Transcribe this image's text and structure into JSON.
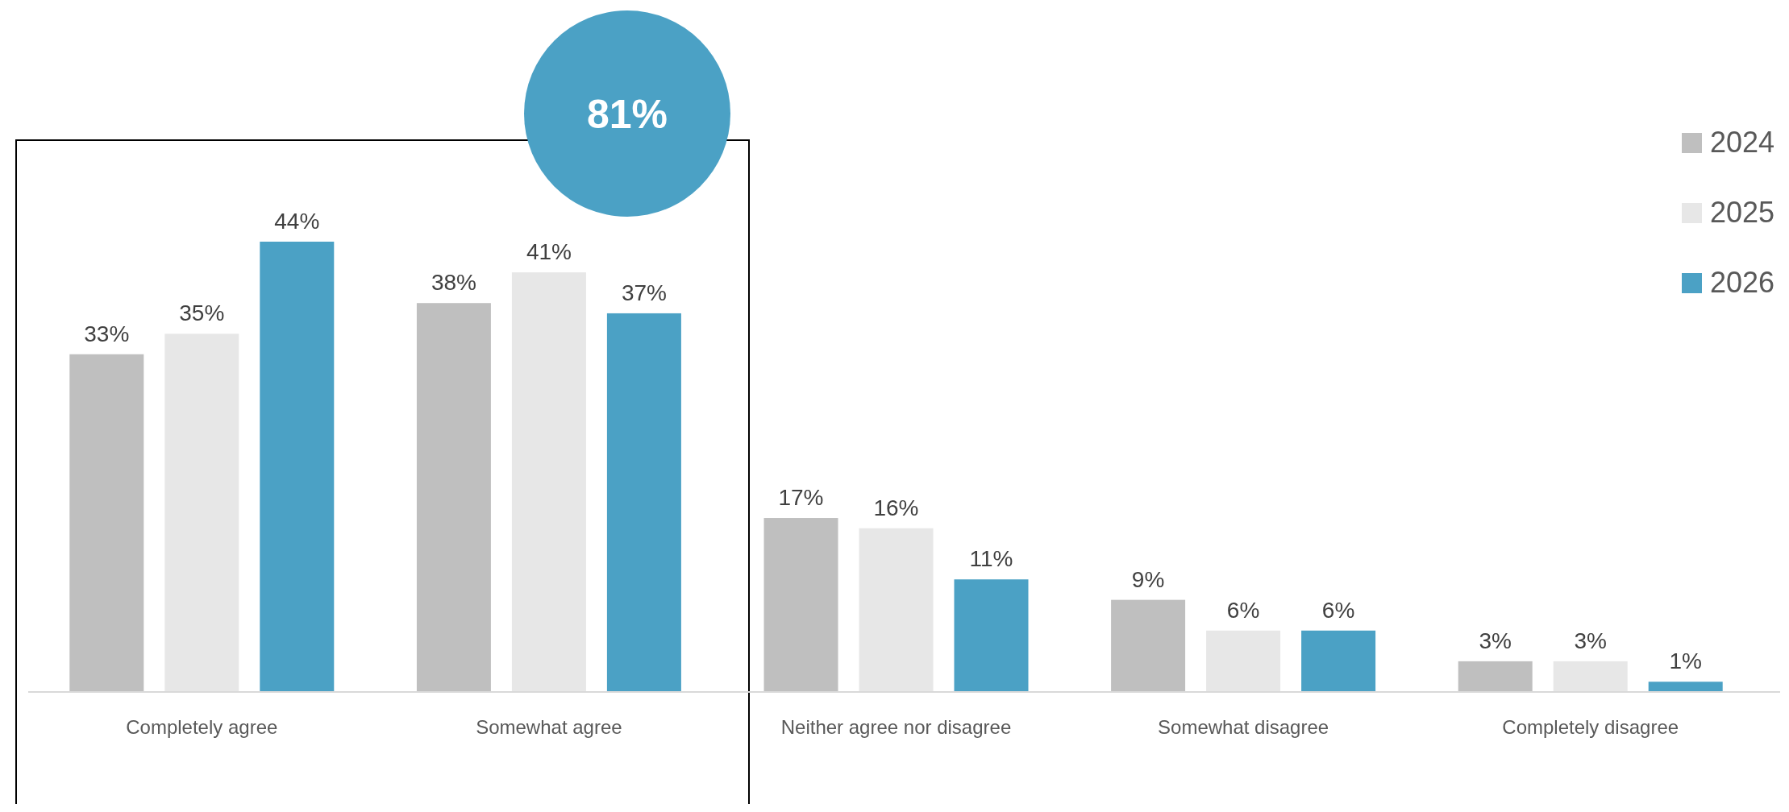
{
  "chart_data": {
    "type": "bar",
    "categories": [
      "Completely agree",
      "Somewhat agree",
      "Neither agree nor disagree",
      "Somewhat disagree",
      "Completely disagree"
    ],
    "series": [
      {
        "name": "2024",
        "color": "#bfbfbf",
        "values": [
          33,
          38,
          17,
          9,
          3
        ],
        "value_labels": [
          "33%",
          "38%",
          "17%",
          "9%",
          "3%"
        ]
      },
      {
        "name": "2025",
        "color": "#e7e7e7",
        "values": [
          35,
          41,
          16,
          6,
          3
        ],
        "value_labels": [
          "35%",
          "41%",
          "16%",
          "6%",
          "3%"
        ]
      },
      {
        "name": "2026",
        "color": "#4ba1c5",
        "values": [
          44,
          37,
          11,
          6,
          1
        ],
        "value_labels": [
          "44%",
          "37%",
          "11%",
          "6%",
          "1%"
        ]
      }
    ],
    "legend": "top right",
    "annotations": [
      "81%"
    ]
  }
}
